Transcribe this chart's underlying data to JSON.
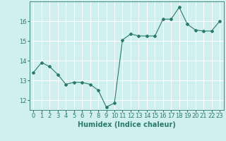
{
  "x": [
    0,
    1,
    2,
    3,
    4,
    5,
    6,
    7,
    8,
    9,
    10,
    11,
    12,
    13,
    14,
    15,
    16,
    17,
    18,
    19,
    20,
    21,
    22,
    23
  ],
  "y": [
    13.4,
    13.9,
    13.7,
    13.3,
    12.8,
    12.9,
    12.9,
    12.8,
    12.5,
    11.65,
    11.85,
    15.05,
    15.35,
    15.25,
    15.25,
    15.25,
    16.1,
    16.1,
    16.7,
    15.85,
    15.55,
    15.5,
    15.5,
    16.0
  ],
  "line_color": "#2a7a6a",
  "marker": "D",
  "marker_size": 2,
  "bg_color": "#d0efef",
  "grid_color": "#ffffff",
  "axis_color": "#2a7a6a",
  "xlabel": "Humidex (Indice chaleur)",
  "xlim": [
    -0.5,
    23.5
  ],
  "ylim": [
    11.5,
    17.0
  ],
  "yticks": [
    12,
    13,
    14,
    15,
    16
  ],
  "xticks": [
    0,
    1,
    2,
    3,
    4,
    5,
    6,
    7,
    8,
    9,
    10,
    11,
    12,
    13,
    14,
    15,
    16,
    17,
    18,
    19,
    20,
    21,
    22,
    23
  ],
  "xlabel_fontsize": 7,
  "tick_fontsize": 6
}
